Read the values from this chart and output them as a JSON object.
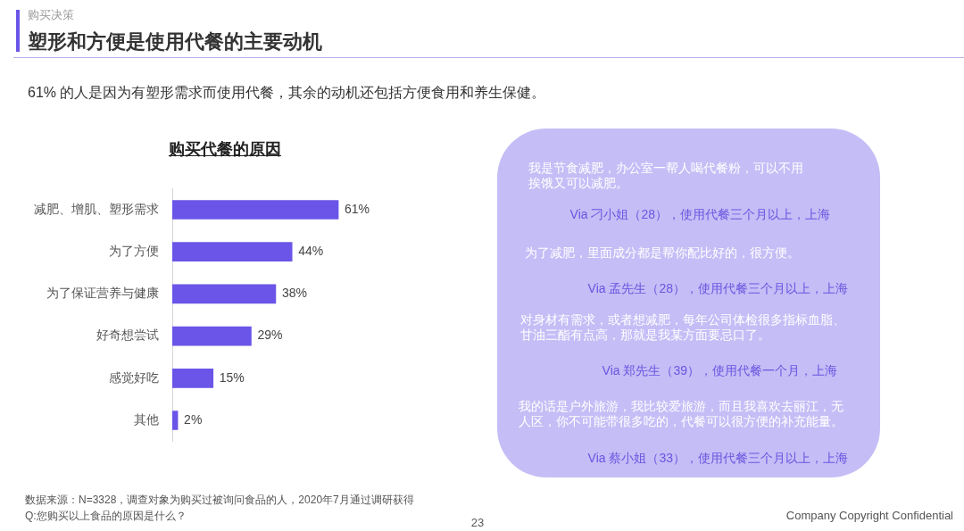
{
  "chart_data": {
    "type": "bar",
    "orientation": "horizontal",
    "title": "塑形和方便是使用代餐的主要动机",
    "subtitle": "61% 的人是因为有塑形需求而使用代餐，其余的动机还包括方便食用和养生保健。",
    "categories": [
      "减肥、增肌、塑形需求",
      "为了方便",
      "为了保证营养与健康",
      "好奇想尝试",
      "感觉好吃",
      "其他"
    ],
    "values": [
      61,
      44,
      38,
      29,
      15,
      2
    ],
    "value_labels": [
      "61%",
      "44%",
      "38%",
      "29%",
      "15%",
      "2%"
    ],
    "color": "#6a55e8",
    "tick_labels": "y",
    "annotations": [
      "购买决策",
      "购买代餐的原因",
      "我是节食减肥，办公室一帮人喝代餐粉，可以不用挨饿又可以减肥。",
      "Via 刁小姐（28），使用代餐三个月以上，上海",
      "为了减肥，里面成分都是帮你配比好的，很方便。",
      "Via 孟先生（28），使用代餐三个月以上，上海",
      "对身材有需求，或者想减肥，每年公司体检很多指标血脂、甘油三酯有点高，那就是我某方面要忌口了。",
      "Via 郑先生（39），使用代餐一个月，上海",
      "我的话是户外旅游，我比较爱旅游，而且我喜欢去丽江，无人区，你不可能带很多吃的，代餐可以很方便的补充能量。",
      "Via 蔡小姐（33），使用代餐三个月以上，上海",
      "数据来源：N=3328，调查对象为购买过被询问食品的人，2020年7月通过调研获得",
      "Q:您购买以上食品的原因是什么？",
      "23",
      "Company Copyright Confidential"
    ]
  }
}
